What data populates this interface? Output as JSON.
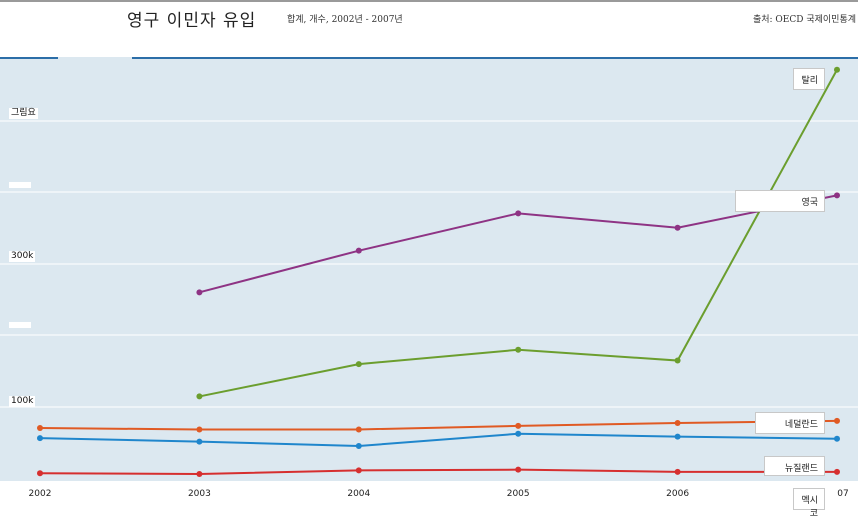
{
  "header": {
    "title": "영구 이민자 유입",
    "subtitle": "합계, 개수, 2002년 - 2007년",
    "source": "출처: OECD 국제이민통계"
  },
  "chart_data": {
    "type": "line",
    "title": "영구 이민자 유입",
    "subtitle": "합계, 개수, 2002년 - 2007년",
    "x": [
      2002,
      2003,
      2004,
      2005,
      2006,
      2007
    ],
    "x_tick_labels": [
      "2002",
      "2003",
      "2004",
      "2005",
      "2006",
      "07"
    ],
    "y_tick_labels": [
      "100k",
      "",
      "300k",
      "",
      "그림요"
    ],
    "ylim": [
      0,
      600000
    ],
    "grid": true,
    "legend": "labels at line ends",
    "series": [
      {
        "name": "탈리",
        "color": "#6b9e2e",
        "values": [
          null,
          115000,
          160000,
          180000,
          165000,
          570000
        ]
      },
      {
        "name": "영국",
        "color": "#8e3384",
        "values": [
          null,
          260000,
          318000,
          370000,
          350000,
          395000
        ]
      },
      {
        "name": "네덜란드",
        "color": "#e05a24",
        "values": [
          71000,
          69000,
          69000,
          74000,
          78000,
          81000
        ]
      },
      {
        "name": "뉴질랜드",
        "color": "#1f86cc",
        "values": [
          57000,
          52000,
          46000,
          63000,
          59000,
          56000
        ]
      },
      {
        "name": "멕시코",
        "color": "#d62f2f",
        "values": [
          8000,
          7000,
          12000,
          13000,
          10000,
          10000
        ]
      }
    ]
  }
}
